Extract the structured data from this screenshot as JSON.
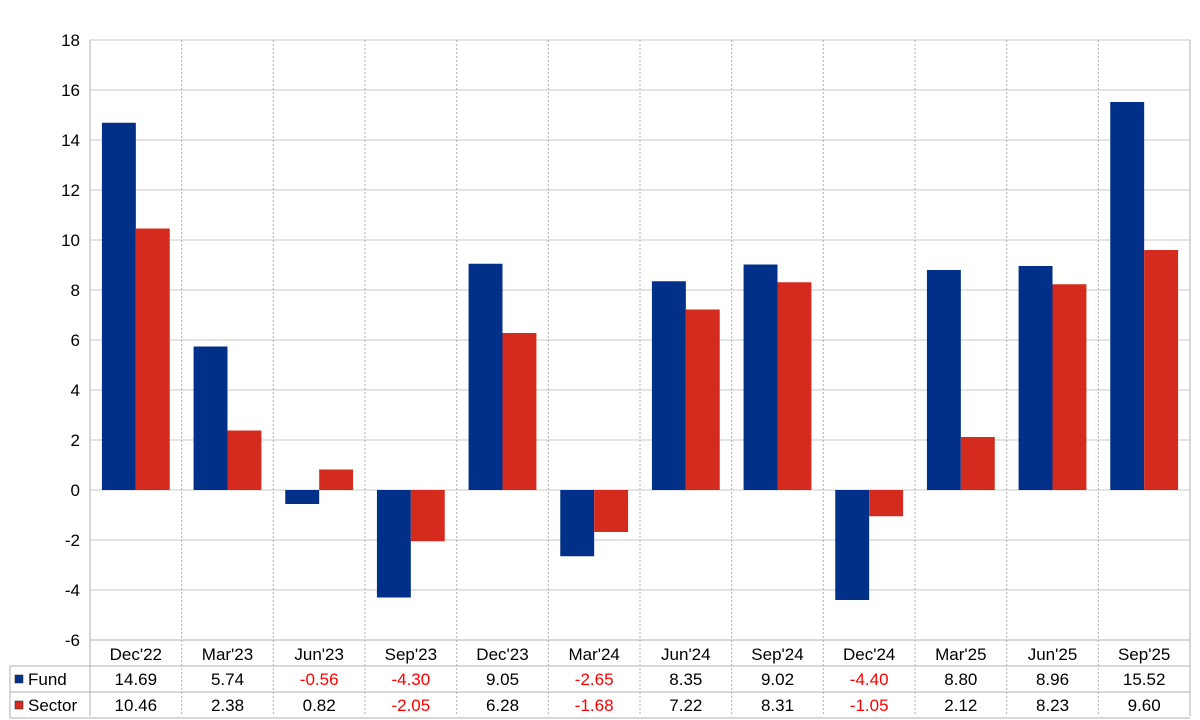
{
  "chart_data": {
    "type": "bar",
    "categories": [
      "Dec'22",
      "Mar'23",
      "Jun'23",
      "Sep'23",
      "Dec'23",
      "Mar'24",
      "Jun'24",
      "Sep'24",
      "Dec'24",
      "Mar'25",
      "Jun'25",
      "Sep'25"
    ],
    "series": [
      {
        "name": "Fund",
        "color": "#003087",
        "values": [
          14.69,
          5.74,
          -0.56,
          -4.3,
          9.05,
          -2.65,
          8.35,
          9.02,
          -4.4,
          8.8,
          8.96,
          15.52
        ],
        "labels": [
          "14.69",
          "5.74",
          "-0.56",
          "-4.30",
          "9.05",
          "-2.65",
          "8.35",
          "9.02",
          "-4.40",
          "8.80",
          "8.96",
          "15.52"
        ]
      },
      {
        "name": "Sector",
        "color": "#d52b1e",
        "values": [
          10.46,
          2.38,
          0.82,
          -2.05,
          6.28,
          -1.68,
          7.22,
          8.31,
          -1.05,
          2.12,
          8.23,
          9.6
        ],
        "labels": [
          "10.46",
          "2.38",
          "0.82",
          "-2.05",
          "6.28",
          "-1.68",
          "7.22",
          "8.31",
          "-1.05",
          "2.12",
          "8.23",
          "9.60"
        ]
      }
    ],
    "ylim": [
      -6,
      18
    ],
    "yticks": [
      "-6",
      "-4",
      "-2",
      "0",
      "2",
      "4",
      "6",
      "8",
      "10",
      "12",
      "14",
      "16",
      "18"
    ],
    "grid": true,
    "legend": "data-table-below",
    "negative_label_color": "#ff0000"
  }
}
